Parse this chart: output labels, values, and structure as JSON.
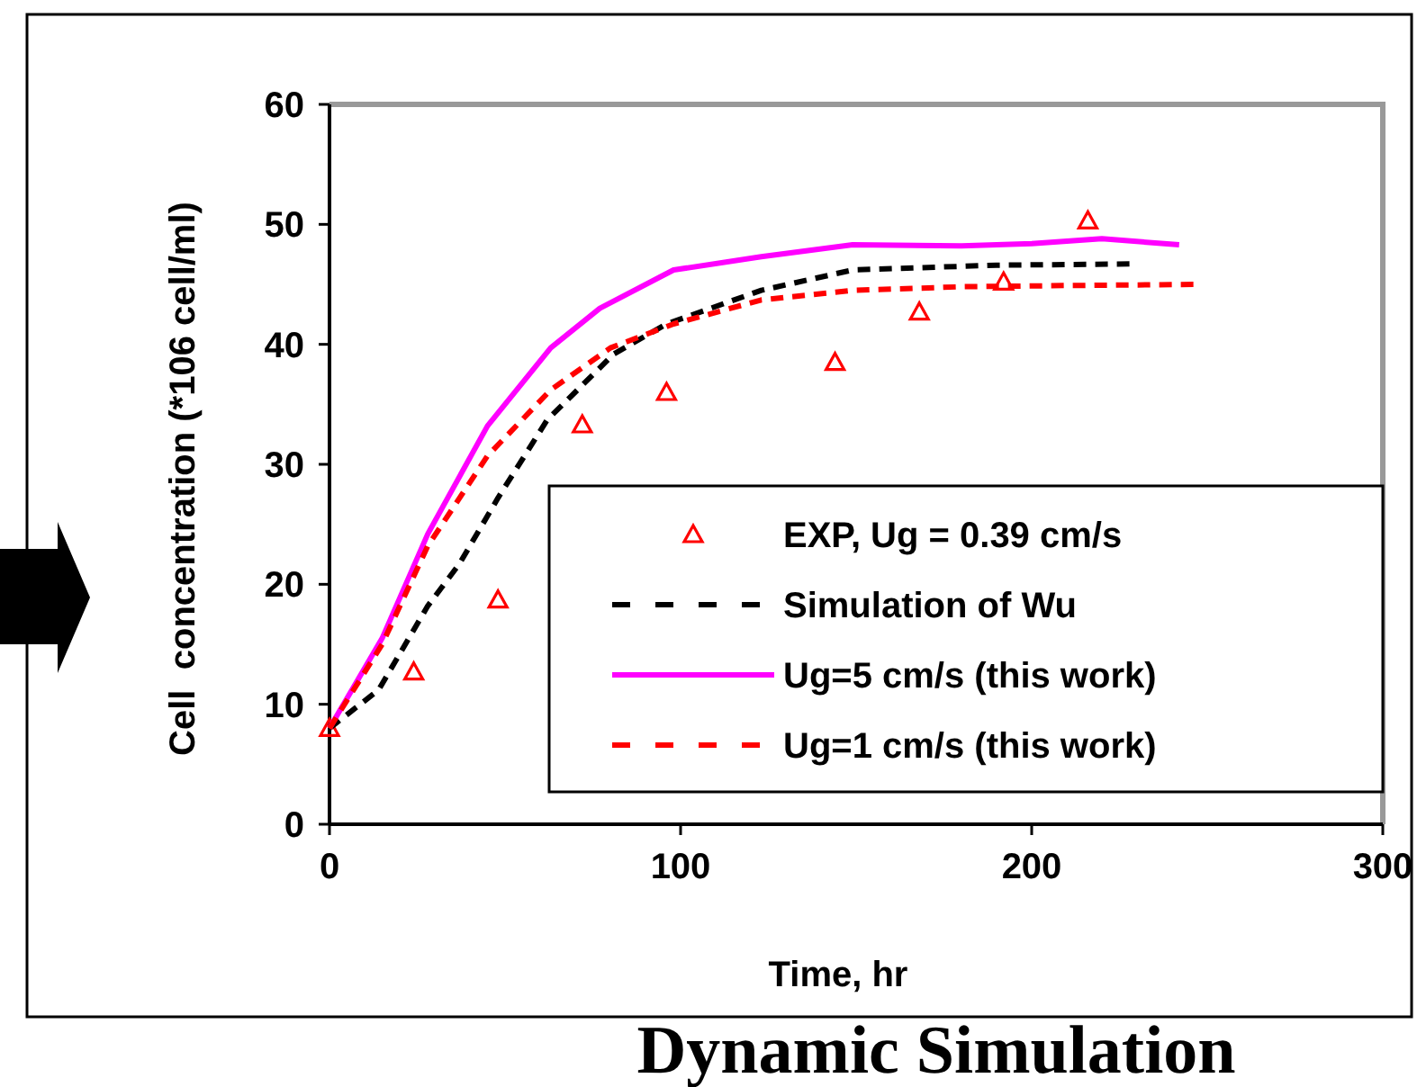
{
  "chart_data": {
    "type": "line",
    "xlabel": "Time, hr",
    "ylabel": "Cell  concentration (*106 cell/ml)",
    "annotations": [
      "Dynamic Simulation"
    ],
    "xlim": [
      0,
      300
    ],
    "xticks": [
      0,
      100,
      200,
      300
    ],
    "ylim": [
      0,
      60
    ],
    "yticks": [
      0,
      10,
      20,
      30,
      40,
      50,
      60
    ],
    "grid": false,
    "legend": "bottom right",
    "series": [
      {
        "name": "EXP, Ug = 0.39 cm/s",
        "type": "scatter",
        "marker": "triangle",
        "color": "#ff0000",
        "x": [
          0,
          24,
          48,
          72,
          96,
          144,
          168,
          192,
          216
        ],
        "values": [
          8,
          12.7,
          18.7,
          33.3,
          36,
          38.5,
          42.7,
          45.2,
          50.3
        ]
      },
      {
        "name": "Simulation of Wu",
        "type": "line",
        "line_style": "dashed",
        "color": "#000000",
        "x": [
          0,
          14,
          28,
          37,
          48,
          62,
          81,
          96,
          123,
          149,
          190,
          229
        ],
        "values": [
          8,
          11.2,
          18.2,
          21.7,
          27.2,
          33.7,
          39.2,
          41.7,
          44.5,
          46.2,
          46.6,
          46.7
        ]
      },
      {
        "name": "Ug=5 cm/s (this work)",
        "type": "line",
        "line_style": "solid",
        "color": "#ff00ff",
        "x": [
          0,
          15,
          28,
          45,
          63,
          77,
          98,
          123,
          149,
          180,
          200,
          220,
          242
        ],
        "values": [
          8,
          15.5,
          24.2,
          33.2,
          39.7,
          43,
          46.2,
          47.3,
          48.3,
          48.2,
          48.4,
          48.8,
          48.3
        ]
      },
      {
        "name": "Ug=1 cm/s (this work)",
        "type": "line",
        "line_style": "dashed",
        "color": "#ff0000",
        "x": [
          0,
          15,
          28,
          45,
          63,
          80,
          98,
          123,
          149,
          180,
          210,
          248
        ],
        "values": [
          8,
          15,
          23.2,
          30.7,
          36.2,
          39.7,
          41.7,
          43.7,
          44.5,
          44.8,
          44.9,
          45
        ]
      }
    ]
  }
}
